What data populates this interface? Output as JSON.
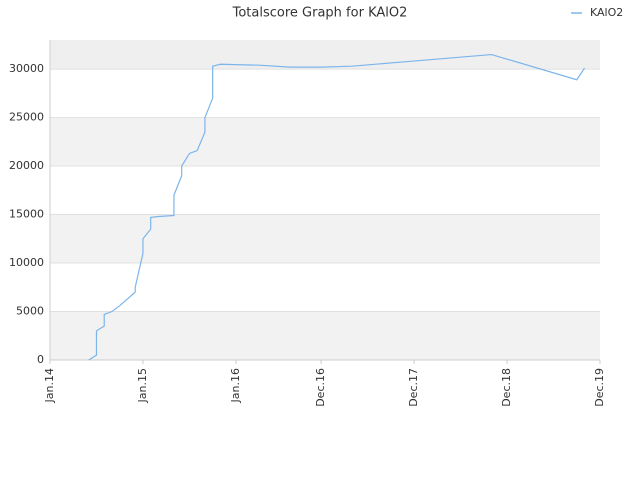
{
  "chart_data": {
    "type": "line",
    "title": "Totalscore Graph for KAlO2",
    "x": [
      "2014-06",
      "2014-07",
      "2014-07",
      "2014-08",
      "2014-08",
      "2014-09",
      "2014-10",
      "2014-11",
      "2014-12",
      "2014-12",
      "2015-01",
      "2015-01",
      "2015-02",
      "2015-02",
      "2015-03",
      "2015-05",
      "2015-05",
      "2015-06",
      "2015-06",
      "2015-07",
      "2015-08",
      "2015-09",
      "2015-09",
      "2015-10",
      "2015-10",
      "2015-10",
      "2015-11",
      "2016-04",
      "2016-08",
      "2016-12",
      "2017-04",
      "2017-10",
      "2018-04",
      "2018-10",
      "2019-09",
      "2019-10"
    ],
    "series": [
      {
        "name": "KAlO2",
        "color": "#7cb5ec",
        "values": [
          0,
          500,
          3000,
          3500,
          4700,
          5000,
          5600,
          6300,
          7000,
          7500,
          11000,
          12500,
          13500,
          14700,
          14800,
          14900,
          17000,
          19000,
          20000,
          21300,
          21600,
          23500,
          25000,
          27000,
          28300,
          30300,
          30500,
          30400,
          30200,
          30200,
          30300,
          30700,
          31100,
          31500,
          28900,
          30100
        ]
      }
    ],
    "xlim": [
      "2014-01",
      "2019-12"
    ],
    "xticks": [
      {
        "value": "2014-01",
        "label": "Jan.14"
      },
      {
        "value": "2015-01",
        "label": "Jan.15"
      },
      {
        "value": "2016-01",
        "label": "Jan.16"
      },
      {
        "value": "2016-12",
        "label": "Dec.16"
      },
      {
        "value": "2017-12",
        "label": "Dec.17"
      },
      {
        "value": "2018-12",
        "label": "Dec.18"
      },
      {
        "value": "2019-12",
        "label": "Dec.19"
      }
    ],
    "ylim": [
      0,
      33000
    ],
    "yticks": [
      0,
      5000,
      10000,
      15000,
      20000,
      25000,
      30000
    ],
    "grid": true,
    "legend": "top-right"
  }
}
